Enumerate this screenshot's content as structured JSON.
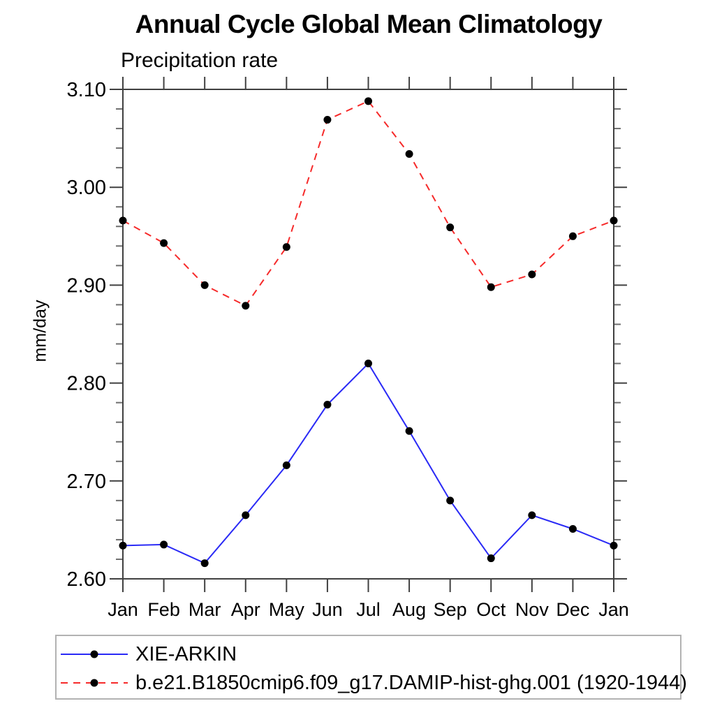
{
  "chart_data": {
    "type": "line",
    "title": "Annual Cycle Global Mean Climatology",
    "subtitle": "Precipitation rate",
    "ylabel": "mm/day",
    "xlabel": "",
    "x_labels": [
      "Jan",
      "Feb",
      "Mar",
      "Apr",
      "May",
      "Jun",
      "Jul",
      "Aug",
      "Sep",
      "Oct",
      "Nov",
      "Dec",
      "Jan"
    ],
    "ylim": [
      2.6,
      3.1
    ],
    "y_major_step": 0.1,
    "y_minor_step": 0.02,
    "y_tick_format_decimals": 2,
    "grid": "off",
    "legend_position": "bottom-left-box",
    "frame_color": "#404040",
    "minor_tick_color": "#6e6e6e",
    "marker": {
      "shape": "circle",
      "color": "#000000",
      "radius": 5.5
    },
    "series": [
      {
        "name": "XIE-ARKIN",
        "color": "#2a2af6",
        "line_style": "solid",
        "values": [
          2.634,
          2.635,
          2.616,
          2.665,
          2.716,
          2.778,
          2.82,
          2.751,
          2.68,
          2.621,
          2.665,
          2.651,
          2.634
        ]
      },
      {
        "name": "b.e21.B1850cmip6.f09_g17.DAMIP-hist-ghg.001 (1920-1944)",
        "color": "#f62a2a",
        "line_style": "dashed",
        "values": [
          2.966,
          2.943,
          2.9,
          2.879,
          2.939,
          3.069,
          3.088,
          3.034,
          2.959,
          2.898,
          2.911,
          2.95,
          2.966
        ]
      }
    ]
  }
}
